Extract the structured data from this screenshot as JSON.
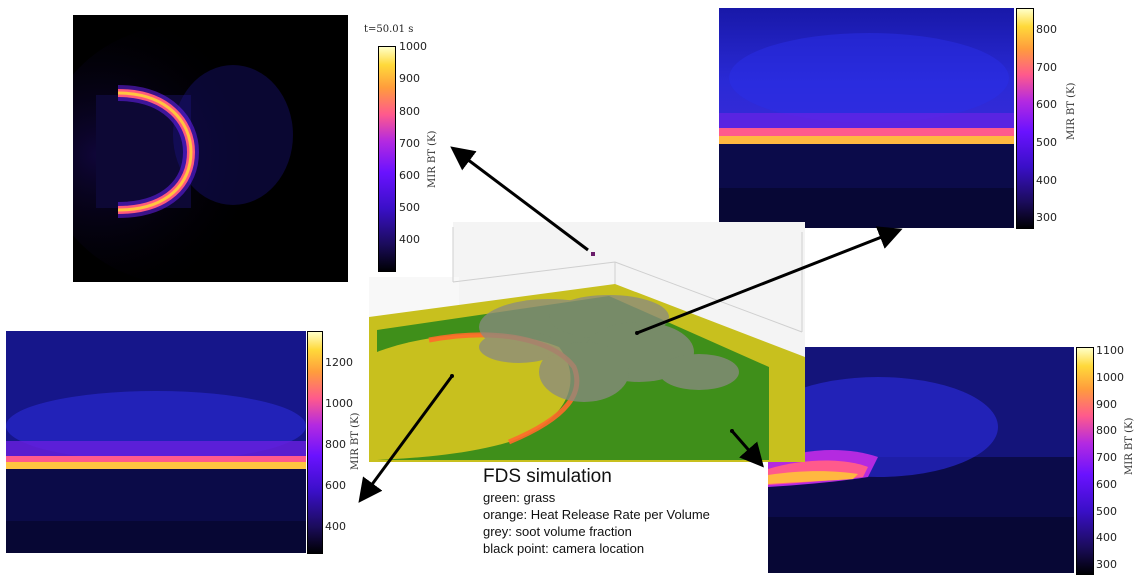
{
  "timestamp": "t=50.01 s",
  "colorbar_label": "MIR BT (K)",
  "panels": {
    "top_left": {
      "ticks": [
        "1000",
        "900",
        "800",
        "700",
        "600",
        "500",
        "400"
      ]
    },
    "top_right": {
      "ticks": [
        "800",
        "700",
        "600",
        "500",
        "400",
        "300"
      ]
    },
    "bottom_left": {
      "ticks": [
        "1200",
        "1000",
        "800",
        "600",
        "400"
      ]
    },
    "bottom_right": {
      "ticks": [
        "1100",
        "1000",
        "900",
        "800",
        "700",
        "600",
        "500",
        "400",
        "300"
      ]
    }
  },
  "legend": {
    "title": "FDS simulation",
    "lines": [
      "green: grass",
      "orange: Heat Release Rate per Volume",
      "grey: soot volume fraction",
      "black point: camera location"
    ]
  },
  "colors": {
    "grass": "#3f8f1a",
    "burnt": "#c8c01e",
    "fire_front": "#ff6a2a",
    "colormap_low": "#000004",
    "colormap_high": "#ffffc8"
  }
}
